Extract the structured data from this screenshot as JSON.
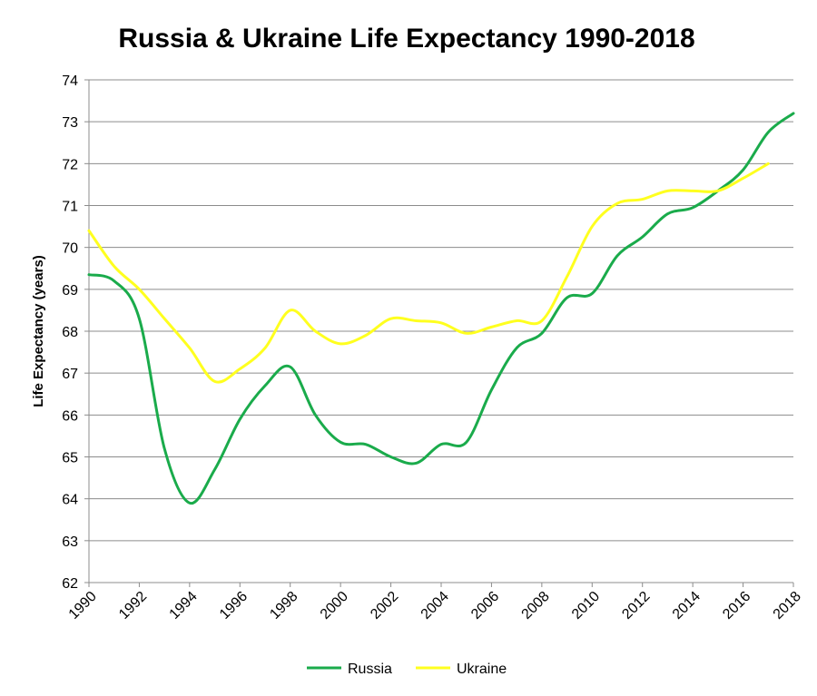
{
  "chart_data": {
    "type": "line",
    "title": "Russia & Ukraine Life Expectancy 1990-2018",
    "xlabel": "",
    "ylabel": "Life Expectancy (years)",
    "xlim": [
      1990,
      2018
    ],
    "ylim": [
      62,
      74
    ],
    "x_ticks": [
      "1990",
      "1992",
      "1994",
      "1996",
      "1998",
      "2000",
      "2002",
      "2004",
      "2006",
      "2008",
      "2010",
      "2012",
      "2014",
      "2016",
      "2018"
    ],
    "y_ticks": [
      "62",
      "63",
      "64",
      "65",
      "66",
      "67",
      "68",
      "69",
      "70",
      "71",
      "72",
      "73",
      "74"
    ],
    "grid": true,
    "legend_position": "bottom",
    "series": [
      {
        "name": "Russia",
        "color": "#1aab4b",
        "x": [
          1990,
          1991,
          1992,
          1993,
          1994,
          1995,
          1996,
          1997,
          1998,
          1999,
          2000,
          2001,
          2002,
          2003,
          2004,
          2005,
          2006,
          2007,
          2008,
          2009,
          2010,
          2011,
          2012,
          2013,
          2014,
          2015,
          2016,
          2017,
          2018
        ],
        "values": [
          69.35,
          69.2,
          68.3,
          65.2,
          63.9,
          64.7,
          65.9,
          66.7,
          67.15,
          66.0,
          65.35,
          65.3,
          65.0,
          64.85,
          65.3,
          65.35,
          66.6,
          67.6,
          67.95,
          68.8,
          68.9,
          69.8,
          70.25,
          70.8,
          70.95,
          71.35,
          71.85,
          72.75,
          73.2
        ]
      },
      {
        "name": "Ukraine",
        "color": "#ffff1f",
        "x": [
          1990,
          1991,
          1992,
          1993,
          1994,
          1995,
          1996,
          1997,
          1998,
          1999,
          2000,
          2001,
          2002,
          2003,
          2004,
          2005,
          2006,
          2007,
          2008,
          2009,
          2010,
          2011,
          2012,
          2013,
          2014,
          2015,
          2016,
          2017
        ],
        "values": [
          70.4,
          69.55,
          69.0,
          68.3,
          67.6,
          66.8,
          67.1,
          67.6,
          68.5,
          68.0,
          67.7,
          67.9,
          68.3,
          68.25,
          68.2,
          67.95,
          68.1,
          68.25,
          68.25,
          69.3,
          70.5,
          71.05,
          71.15,
          71.35,
          71.35,
          71.35,
          71.65,
          72.0
        ]
      }
    ]
  }
}
